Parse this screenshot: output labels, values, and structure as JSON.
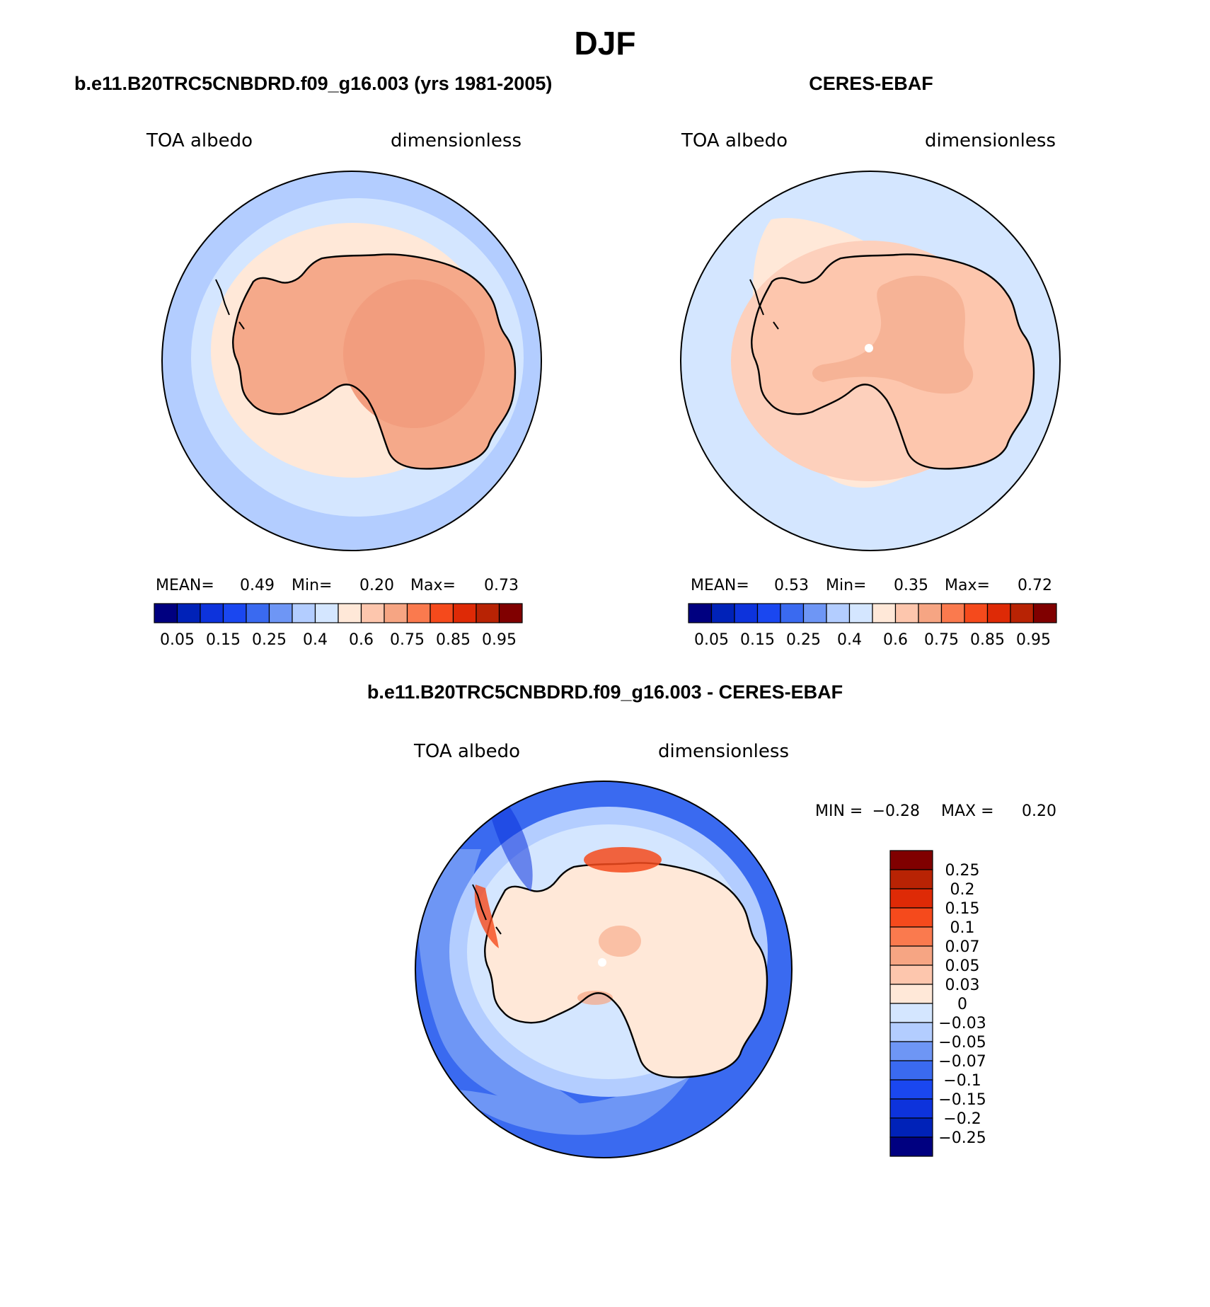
{
  "title": "DJF",
  "panels": [
    {
      "id": "model",
      "title": "b.e11.B20TRC5CNBDRD.f09_g16.003 (yrs 1981-2005)",
      "left_label": "TOA albedo",
      "right_label": "dimensionless",
      "stats": {
        "mean_label": "MEAN=",
        "mean": "0.49",
        "min_label": "Min=",
        "min": "0.20",
        "max_label": "Max=",
        "max": "0.73"
      },
      "fills": {
        "ocean": "#b3cdff",
        "ice_zone": "#d4e6ff",
        "coast_zone": "#ffe8d8",
        "interior": "#f5a98a",
        "core": "#f29d7e"
      }
    },
    {
      "id": "obs",
      "title": "CERES-EBAF",
      "left_label": "TOA albedo",
      "right_label": "dimensionless",
      "stats": {
        "mean_label": "MEAN=",
        "mean": "0.53",
        "min_label": "Min=",
        "min": "0.35",
        "max_label": "Max=",
        "max": "0.72"
      },
      "fills": {
        "ocean": "#d4e6ff",
        "ice_zone": "#ffe8d8",
        "coast_zone": "#fdd0bc",
        "interior": "#fdc6ad",
        "core": "#f6b396"
      }
    }
  ],
  "panel_colorbar": {
    "colors": [
      "#000080",
      "#0022b8",
      "#0d33dc",
      "#1a47f0",
      "#3a6af0",
      "#6e96f5",
      "#b3cdff",
      "#d4e6ff",
      "#ffe8d8",
      "#fdc6ad",
      "#f6a583",
      "#fa7a4e",
      "#f54a1c",
      "#de2a06",
      "#b82304",
      "#800000"
    ],
    "tick_labels": [
      "0.05",
      "0.15",
      "0.25",
      "0.4",
      "0.6",
      "0.75",
      "0.85",
      "0.95"
    ]
  },
  "difference": {
    "title": "b.e11.B20TRC5CNBDRD.f09_g16.003 - CERES-EBAF",
    "left_label": "TOA albedo",
    "right_label": "dimensionless",
    "stats": {
      "min_label": "MIN =",
      "min": "−0.28",
      "max_label": "MAX =",
      "max": "0.20"
    },
    "fills": {
      "ocean": "#3a6af0",
      "mid": "#6e96f5",
      "light": "#b3cdff",
      "pale": "#d4e6ff",
      "land": "#ffe8d8",
      "warm": "#f6a583",
      "hot": "#f54a1c"
    },
    "colorbar": {
      "colors_top_to_bottom": [
        "#800000",
        "#b82304",
        "#de2a06",
        "#f54a1c",
        "#fa7a4e",
        "#f6a583",
        "#fdc6ad",
        "#ffe8d8",
        "#d4e6ff",
        "#b3cdff",
        "#6e96f5",
        "#3a6af0",
        "#1a47f0",
        "#0d33dc",
        "#0022b8",
        "#000080"
      ],
      "tick_labels_top_to_bottom": [
        "0.25",
        "0.2",
        "0.15",
        "0.1",
        "0.07",
        "0.05",
        "0.03",
        "0",
        "−0.03",
        "−0.05",
        "−0.07",
        "−0.1",
        "−0.15",
        "−0.2",
        "−0.25"
      ]
    }
  }
}
